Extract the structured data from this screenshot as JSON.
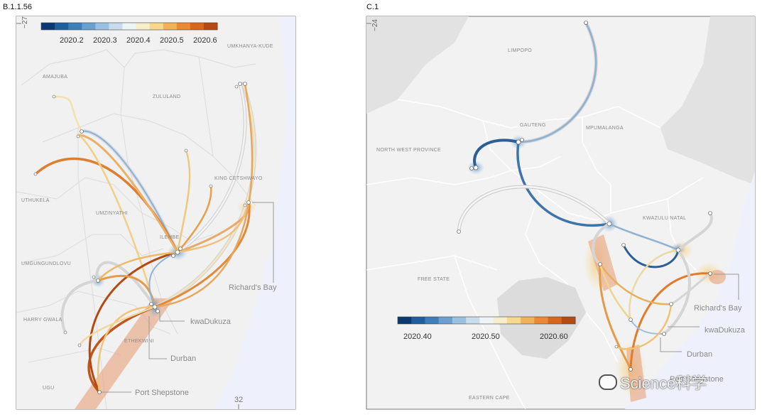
{
  "panels": [
    {
      "title": "B.1.1.56",
      "axis_labels": {
        "latitude": "−27",
        "longitude": "32"
      },
      "colorbar": {
        "ticks": [
          "2020.2",
          "2020.3",
          "2020.4",
          "2020.5",
          "2020.6"
        ],
        "colors": [
          "#0b3a73",
          "#1f5f9e",
          "#3f7fb8",
          "#6b9fcd",
          "#9cc0df",
          "#c8dceb",
          "#eef3f6",
          "#f7eecb",
          "#f6d98c",
          "#f2b25a",
          "#ea8a35",
          "#d9661c",
          "#b44a12"
        ]
      },
      "regions": [
        "UMKHANYA-KUDE",
        "AMAJUBA",
        "ZULULAND",
        "UTHUKELA",
        "UMZINYATHI",
        "KING CETSHWAYO",
        "ILEMBE",
        "UMGUNGUNDLOVU",
        "HARRY GWALA",
        "ETHEKWINI",
        "UGU"
      ],
      "cities": [
        "Richard's Bay",
        "kwaDukuza",
        "Durban",
        "Port Shepstone"
      ]
    },
    {
      "title": "C.1",
      "axis_labels": {
        "latitude": "−24"
      },
      "colorbar": {
        "ticks": [
          "2020.40",
          "2020.50",
          "2020.60"
        ],
        "colors": [
          "#0b3a73",
          "#1f5f9e",
          "#3f7fb8",
          "#6b9fcd",
          "#9cc0df",
          "#c8dceb",
          "#eef3f6",
          "#f7eecb",
          "#f6d98c",
          "#f2b25a",
          "#ea8a35",
          "#d9661c",
          "#b44a12"
        ]
      },
      "regions": [
        "LIMPOPO",
        "GAUTENG",
        "MPUMALANGA",
        "NORTH WEST PROVINCE",
        "KWAZULU NATAL",
        "FREE STATE",
        "EASTERN CAPE"
      ],
      "cities": [
        "Richard's Bay",
        "kwaDukuza",
        "Durban",
        "Port Shepstone"
      ]
    }
  ],
  "watermark": "Science科学"
}
